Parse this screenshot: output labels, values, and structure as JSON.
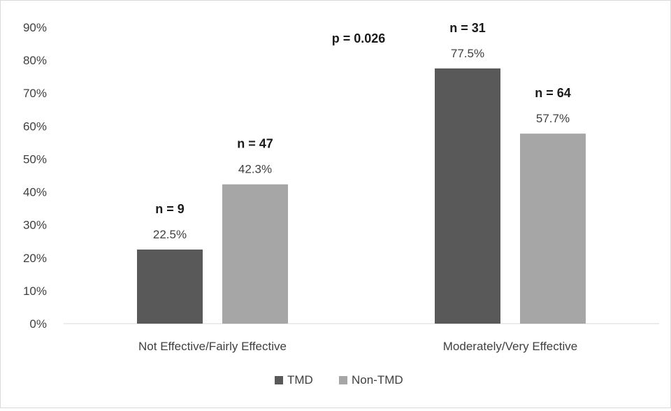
{
  "chart_data": {
    "type": "bar",
    "categories": [
      "Not Effective/Fairly Effective",
      "Moderately/Very Effective"
    ],
    "series": [
      {
        "name": "TMD",
        "color": "#595959",
        "values": [
          22.5,
          77.5
        ],
        "count_labels": [
          "n = 9",
          "n = 31"
        ],
        "value_labels": [
          "22.5%",
          "77.5%"
        ]
      },
      {
        "name": "Non-TMD",
        "color": "#a6a6a6",
        "values": [
          42.3,
          57.7
        ],
        "count_labels": [
          "n = 47",
          "n = 64"
        ],
        "value_labels": [
          "42.3%",
          "57.7%"
        ]
      }
    ],
    "annotation": "p = 0.026",
    "y_ticks": [
      "0%",
      "10%",
      "20%",
      "30%",
      "40%",
      "50%",
      "60%",
      "70%",
      "80%",
      "90%"
    ],
    "ylim": [
      0,
      90
    ],
    "grid": false,
    "legend_position": "bottom"
  }
}
